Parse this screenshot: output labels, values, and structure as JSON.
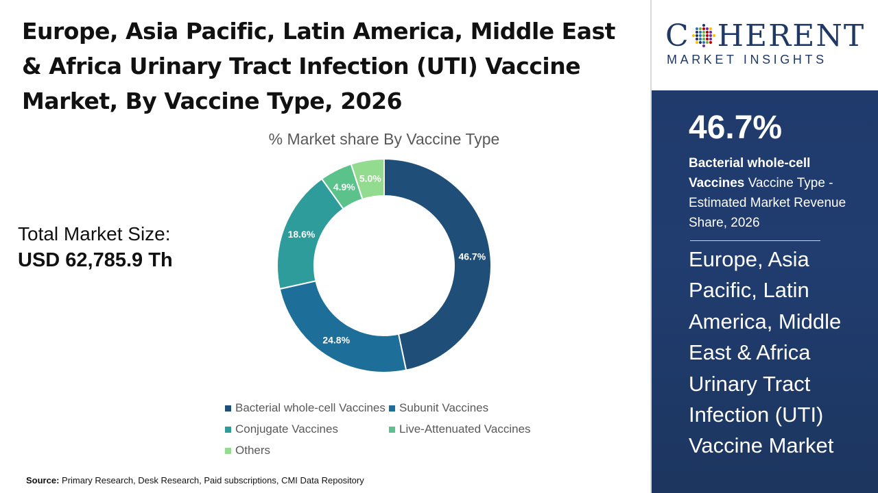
{
  "title": "Europe, Asia Pacific, Latin America, Middle East & Africa Urinary Tract Infection (UTI) Vaccine Market, By Vaccine Type, 2026",
  "market_size": {
    "label": "Total Market Size:",
    "value": "USD 62,785.9 Th"
  },
  "source": {
    "label": "Source:",
    "text": "Primary Research, Desk Research, Paid subscriptions, CMI Data Repository"
  },
  "logo": {
    "line1_pre": "C",
    "line1_post": "HERENT",
    "line2": "MARKET INSIGHTS"
  },
  "highlight": {
    "percent": "46.7%",
    "segment_bold": "Bacterial whole-cell Vaccines",
    "segment_rest": " Vaccine Type - Estimated Market Revenue Share, 2026",
    "region": "Europe, Asia Pacific, Latin America, Middle East & Africa Urinary Tract Infection (UTI) Vaccine Market"
  },
  "colors": {
    "panel": "#1f3a6b",
    "brand": "#1f3864"
  },
  "chart_data": {
    "type": "pie",
    "title": "% Market share By Vaccine Type",
    "donut": true,
    "legend_position": "bottom",
    "series": [
      {
        "name": "Bacterial whole-cell Vaccines",
        "value": 46.7,
        "label": "46.7%",
        "color": "#1f4e79"
      },
      {
        "name": "Subunit Vaccines",
        "value": 24.8,
        "label": "24.8%",
        "color": "#1d6f9a"
      },
      {
        "name": "Conjugate Vaccines",
        "value": 18.6,
        "label": "18.6%",
        "color": "#2e9c9a"
      },
      {
        "name": "Live-Attenuated Vaccines",
        "value": 4.9,
        "label": "4.9%",
        "color": "#5cc28c"
      },
      {
        "name": "Others",
        "value": 5.0,
        "label": "5.0%",
        "color": "#93db8e"
      }
    ]
  }
}
